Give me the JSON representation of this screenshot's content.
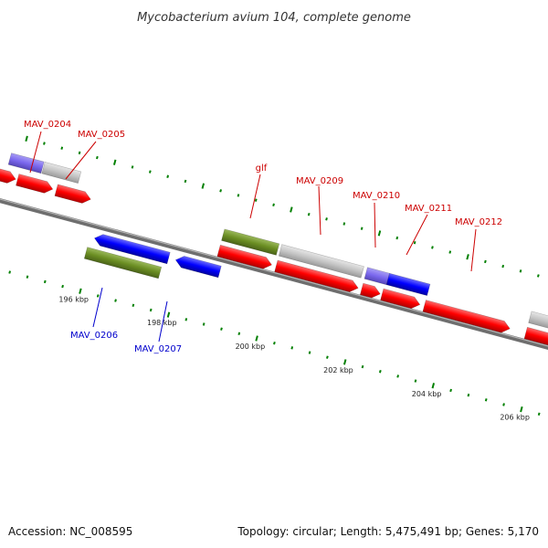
{
  "title": "Mycobacterium avium 104, complete genome",
  "footer": {
    "accession": "Accession: NC_008595",
    "summary": "Topology: circular; Length: 5,475,491 bp; Genes: 5,170"
  },
  "colors": {
    "forward_label": "#cc0000",
    "reverse_label": "#0000cc",
    "cds": "#ff0000",
    "reverse_gene": "#0000ff",
    "rrna_like": "#6b8e23",
    "purple_feature": "#7b68ee",
    "grey_feature": "#c0c0c0",
    "tick": "#008000",
    "backbone": "#808080"
  },
  "scale": {
    "ticks": [
      "196 kbp",
      "198 kbp",
      "200 kbp",
      "202 kbp",
      "204 kbp",
      "206 kbp"
    ]
  },
  "labels": [
    {
      "name": "MAV_0204",
      "strand": "forward"
    },
    {
      "name": "MAV_0205",
      "strand": "forward"
    },
    {
      "name": "glf",
      "strand": "forward"
    },
    {
      "name": "MAV_0209",
      "strand": "forward"
    },
    {
      "name": "MAV_0210",
      "strand": "forward"
    },
    {
      "name": "MAV_0211",
      "strand": "forward"
    },
    {
      "name": "MAV_0212",
      "strand": "forward"
    },
    {
      "name": "MAV_0206",
      "strand": "reverse"
    },
    {
      "name": "MAV_0207",
      "strand": "reverse"
    }
  ]
}
